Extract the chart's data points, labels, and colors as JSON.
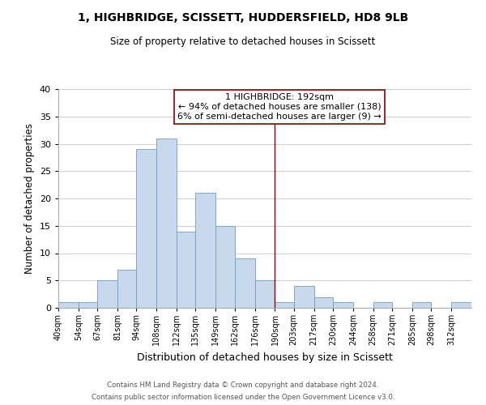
{
  "title": "1, HIGHBRIDGE, SCISSETT, HUDDERSFIELD, HD8 9LB",
  "subtitle": "Size of property relative to detached houses in Scissett",
  "xlabel": "Distribution of detached houses by size in Scissett",
  "ylabel": "Number of detached properties",
  "footer_line1": "Contains HM Land Registry data © Crown copyright and database right 2024.",
  "footer_line2": "Contains public sector information licensed under the Open Government Licence v3.0.",
  "bin_labels": [
    "40sqm",
    "54sqm",
    "67sqm",
    "81sqm",
    "94sqm",
    "108sqm",
    "122sqm",
    "135sqm",
    "149sqm",
    "162sqm",
    "176sqm",
    "190sqm",
    "203sqm",
    "217sqm",
    "230sqm",
    "244sqm",
    "258sqm",
    "271sqm",
    "285sqm",
    "298sqm",
    "312sqm"
  ],
  "bar_heights": [
    1,
    1,
    5,
    7,
    29,
    31,
    14,
    21,
    15,
    9,
    5,
    1,
    4,
    2,
    1,
    0,
    1,
    0,
    1,
    0,
    1
  ],
  "bar_color": "#c8d9ed",
  "bar_edge_color": "#6a9fc8",
  "grid_color": "#d0d0d0",
  "property_line_color": "#8b0000",
  "annotation_title": "1 HIGHBRIDGE: 192sqm",
  "annotation_line1": "← 94% of detached houses are smaller (138)",
  "annotation_line2": "6% of semi-detached houses are larger (9) →",
  "annotation_box_color": "#ffffff",
  "annotation_box_edge": "#8b0000",
  "bin_edges": [
    40,
    54,
    67,
    81,
    94,
    108,
    122,
    135,
    149,
    162,
    176,
    190,
    203,
    217,
    230,
    244,
    258,
    271,
    285,
    298,
    312,
    326
  ],
  "property_line_x": 190,
  "ylim": [
    0,
    40
  ],
  "yticks": [
    0,
    5,
    10,
    15,
    20,
    25,
    30,
    35,
    40
  ]
}
